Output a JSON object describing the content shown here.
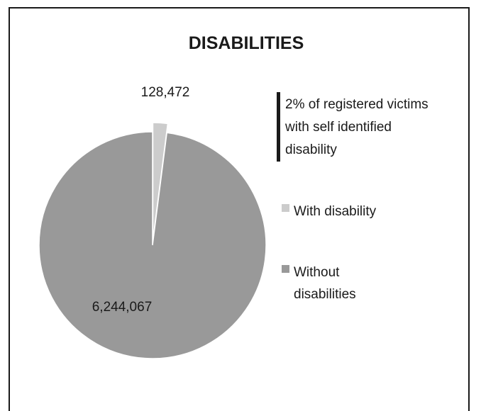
{
  "chart_data": {
    "type": "pie",
    "title": "DISABILITIES",
    "annotation": "2% of registered victims with self identified disability",
    "annotation_lines": [
      "2% of registered victims",
      "with self identified",
      "disability"
    ],
    "slices": [
      {
        "name": "With disability",
        "value": 128472,
        "label": "128,472",
        "color": "#cccccc"
      },
      {
        "name": "Without disabilities",
        "value": 6244067,
        "label": "6,244,067",
        "color": "#999999"
      }
    ],
    "legend": {
      "placement": "right",
      "items": [
        {
          "lines": [
            "With disability"
          ]
        },
        {
          "lines": [
            "Without",
            "disabilities"
          ]
        }
      ]
    }
  }
}
